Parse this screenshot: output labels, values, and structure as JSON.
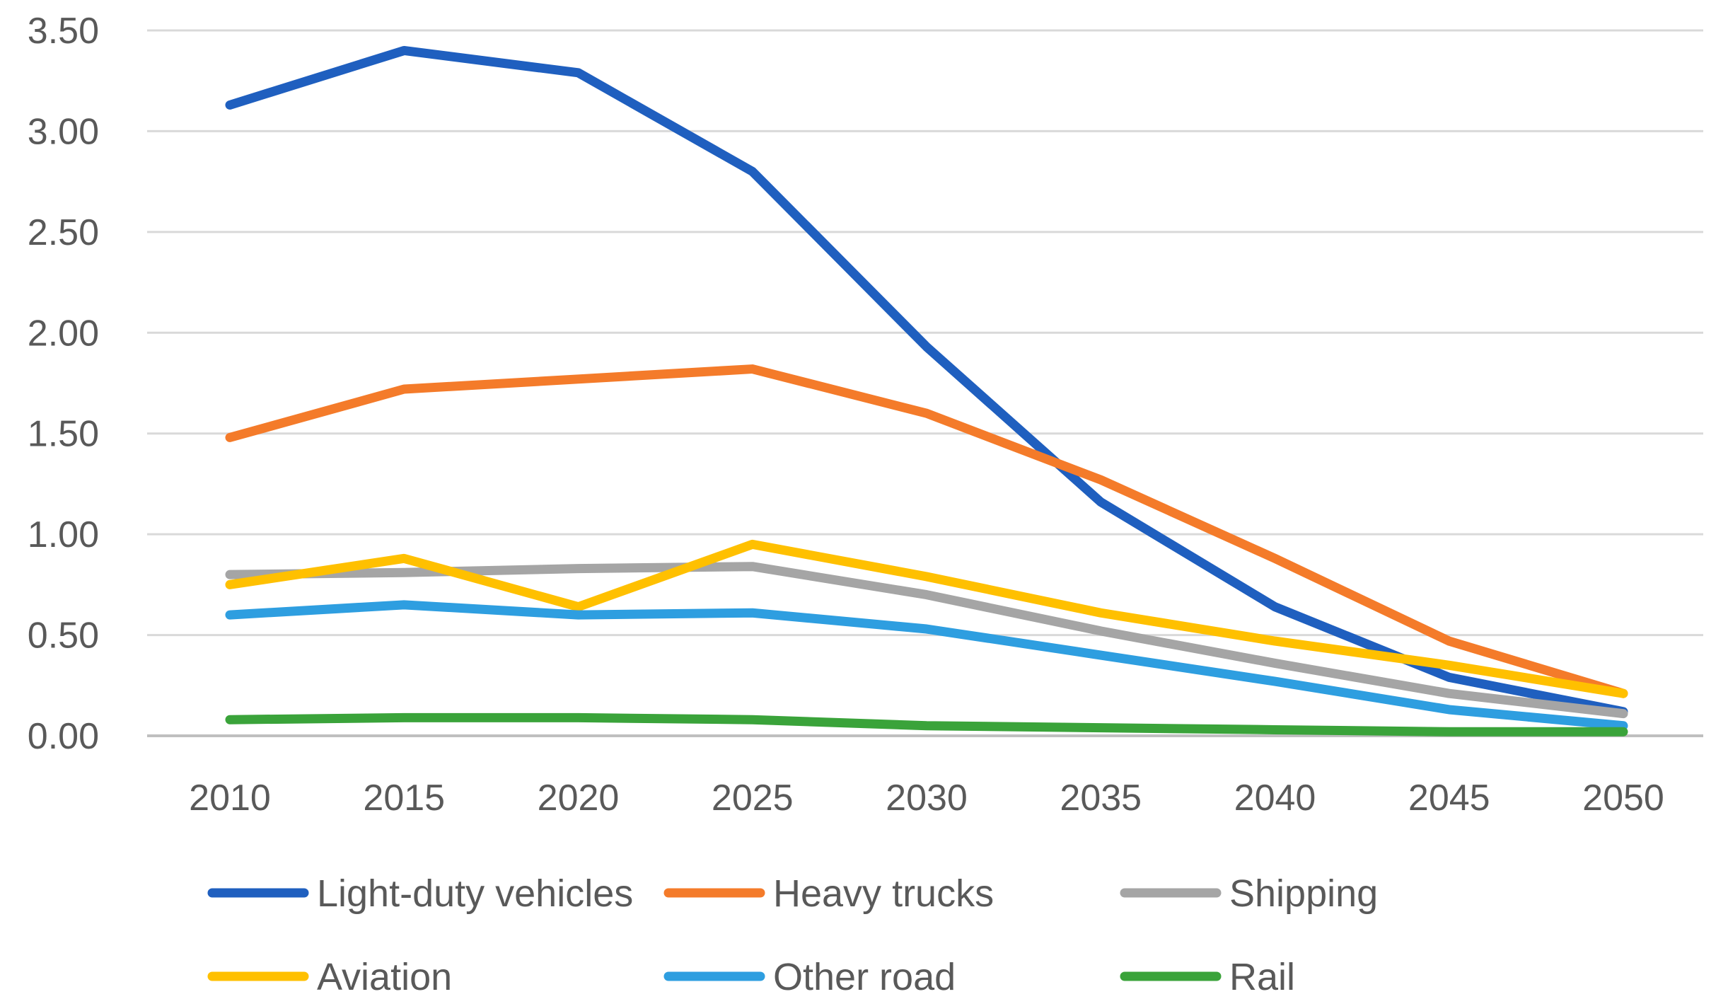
{
  "chart_data": {
    "type": "line",
    "title": "",
    "xlabel": "",
    "ylabel": "",
    "categories": [
      "2010",
      "2015",
      "2020",
      "2025",
      "2030",
      "2035",
      "2040",
      "2045",
      "2050"
    ],
    "y_ticks": [
      "0.00",
      "0.50",
      "1.00",
      "1.50",
      "2.00",
      "2.50",
      "3.00",
      "3.50"
    ],
    "ylim": [
      0,
      3.5
    ],
    "grid": true,
    "legend_position": "bottom",
    "series": [
      {
        "name": "Light-duty vehicles",
        "color": "#1f5fbf",
        "values": [
          3.13,
          3.4,
          3.29,
          2.8,
          1.93,
          1.16,
          0.64,
          0.29,
          0.12
        ]
      },
      {
        "name": "Heavy trucks",
        "color": "#f47b2a",
        "values": [
          1.48,
          1.72,
          1.77,
          1.82,
          1.6,
          1.27,
          0.88,
          0.47,
          0.21
        ]
      },
      {
        "name": "Shipping",
        "color": "#a5a5a5",
        "values": [
          0.8,
          0.81,
          0.83,
          0.84,
          0.7,
          0.52,
          0.36,
          0.21,
          0.11
        ]
      },
      {
        "name": "Aviation",
        "color": "#ffc000",
        "values": [
          0.75,
          0.88,
          0.64,
          0.95,
          0.79,
          0.61,
          0.47,
          0.35,
          0.21
        ]
      },
      {
        "name": "Other road",
        "color": "#2e9ee0",
        "values": [
          0.6,
          0.65,
          0.6,
          0.61,
          0.53,
          0.4,
          0.27,
          0.13,
          0.05
        ]
      },
      {
        "name": "Rail",
        "color": "#3aa33a",
        "values": [
          0.08,
          0.09,
          0.09,
          0.08,
          0.05,
          0.04,
          0.03,
          0.02,
          0.02
        ]
      }
    ]
  }
}
